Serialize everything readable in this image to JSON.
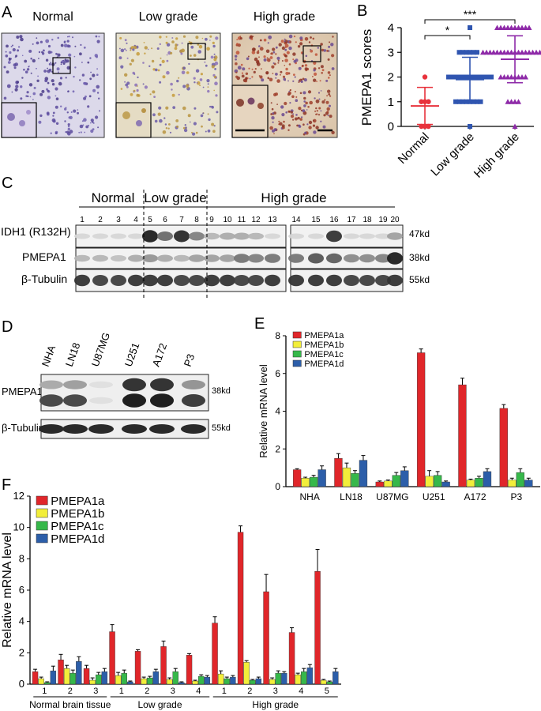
{
  "panels": {
    "A": {
      "letter": "A",
      "titles": [
        "Normal",
        "Low grade",
        "High grade"
      ]
    },
    "C": {
      "letter": "C",
      "groups": [
        "Normal",
        "Low grade",
        "High grade"
      ],
      "lanes": [
        "1",
        "2",
        "3",
        "4",
        "5",
        "6",
        "7",
        "8",
        "9",
        "10",
        "11",
        "12",
        "13",
        "14",
        "15",
        "16",
        "17",
        "18",
        "19",
        "20"
      ],
      "rows": [
        "IDH1 (R132H)",
        "PMEPA1",
        "β-Tubulin"
      ],
      "sizes": [
        "47kd",
        "38kd",
        "55kd"
      ]
    },
    "D": {
      "letter": "D",
      "cells": [
        "NHA",
        "LN18",
        "U87MG",
        "U251",
        "A172",
        "P3"
      ],
      "rows": [
        "PMEPA1",
        "β-Tubulin"
      ],
      "sizes": [
        "38kd",
        "55kd"
      ]
    }
  },
  "chart_data": [
    {
      "id": "B",
      "letter": "B",
      "type": "scatter",
      "ylabel": "PMEPA1 scores",
      "categories": [
        "Normal",
        "Low grade",
        "High grade"
      ],
      "ylim": [
        0,
        4
      ],
      "yticks": [
        "0",
        "1",
        "2",
        "3",
        "4"
      ],
      "colors": [
        "#e8323c",
        "#2f55b0",
        "#8e2aa8"
      ],
      "means": [
        0.83,
        1.9,
        2.72
      ],
      "sd": [
        0.75,
        0.9,
        0.95
      ],
      "points": [
        [
          1,
          1,
          1,
          0,
          0,
          0,
          2
        ],
        [
          0,
          1,
          1,
          1,
          1,
          1,
          1,
          1,
          1,
          2,
          2,
          2,
          2,
          2,
          2,
          2,
          2,
          2,
          2,
          2,
          2,
          2,
          3,
          3,
          3,
          3,
          3,
          3,
          4
        ],
        [
          0,
          1,
          1,
          1,
          1,
          2,
          2,
          2,
          2,
          2,
          2,
          2,
          2,
          3,
          3,
          3,
          3,
          3,
          3,
          3,
          3,
          3,
          3,
          3,
          3,
          3,
          3,
          3,
          3,
          3,
          3,
          4,
          4,
          4,
          4,
          4,
          4,
          4,
          4,
          4,
          4
        ]
      ],
      "significance": [
        {
          "from": 0,
          "to": 1,
          "label": "*"
        },
        {
          "from": 0,
          "to": 2,
          "label": "***"
        }
      ],
      "grid": false
    },
    {
      "id": "E",
      "letter": "E",
      "type": "bar",
      "ylabel": "Relative mRNA  level",
      "categories": [
        "NHA",
        "LN18",
        "U87MG",
        "U251",
        "A172",
        "P3"
      ],
      "ylim": [
        0,
        8
      ],
      "yticks": [
        "0",
        "2",
        "4",
        "6",
        "8"
      ],
      "legend_position": "top-left",
      "series": [
        {
          "name": "PMEPA1a",
          "color": "#e0262a",
          "values": [
            0.9,
            1.5,
            0.25,
            7.1,
            5.4,
            4.15
          ],
          "errors": [
            0.05,
            0.25,
            0.05,
            0.2,
            0.35,
            0.2
          ]
        },
        {
          "name": "PMEPA1b",
          "color": "#f2ee3a",
          "values": [
            0.45,
            1.0,
            0.3,
            0.55,
            0.35,
            0.35
          ],
          "errors": [
            0.05,
            0.25,
            0.05,
            0.3,
            0.05,
            0.1
          ]
        },
        {
          "name": "PMEPA1c",
          "color": "#36b84a",
          "values": [
            0.5,
            0.7,
            0.6,
            0.6,
            0.45,
            0.75
          ],
          "errors": [
            0.1,
            0.15,
            0.15,
            0.2,
            0.1,
            0.2
          ]
        },
        {
          "name": "PMEPA1d",
          "color": "#2c5ea9",
          "values": [
            0.9,
            1.4,
            0.85,
            0.25,
            0.8,
            0.35
          ],
          "errors": [
            0.2,
            0.25,
            0.2,
            0.05,
            0.15,
            0.1
          ]
        }
      ],
      "grid": false
    },
    {
      "id": "F",
      "letter": "F",
      "type": "bar",
      "ylabel": "Relative mRNA  level",
      "categories": [
        "1",
        "2",
        "3",
        "1",
        "2",
        "3",
        "4",
        "1",
        "2",
        "3",
        "4",
        "5"
      ],
      "groups": [
        {
          "label": "Normal brain tissue",
          "count": 3
        },
        {
          "label": "Low grade",
          "count": 4
        },
        {
          "label": "High grade",
          "count": 5
        }
      ],
      "ylim": [
        0,
        12
      ],
      "yticks": [
        "0",
        "2",
        "4",
        "6",
        "8",
        "10",
        "12"
      ],
      "legend_position": "top-left",
      "series": [
        {
          "name": "PMEPA1a",
          "color": "#e0262a",
          "values": [
            0.8,
            1.55,
            1.0,
            3.35,
            2.1,
            2.4,
            1.85,
            3.9,
            9.7,
            5.9,
            3.3,
            7.2
          ],
          "errors": [
            0.15,
            0.35,
            0.2,
            0.45,
            0.1,
            0.35,
            0.1,
            0.4,
            0.4,
            1.1,
            0.3,
            1.4
          ]
        },
        {
          "name": "PMEPA1b",
          "color": "#f2ee3a",
          "values": [
            0.35,
            1.0,
            0.25,
            0.55,
            0.35,
            0.3,
            0.2,
            0.65,
            1.4,
            0.3,
            0.6,
            0.25
          ],
          "errors": [
            0.1,
            0.2,
            0.15,
            0.2,
            0.1,
            0.1,
            0.05,
            0.2,
            0.1,
            0.1,
            0.1,
            0.05
          ]
        },
        {
          "name": "PMEPA1c",
          "color": "#36b84a",
          "values": [
            0.1,
            0.7,
            0.6,
            0.7,
            0.4,
            0.8,
            0.5,
            0.35,
            0.25,
            0.7,
            0.8,
            0.15
          ],
          "errors": [
            0.05,
            0.2,
            0.15,
            0.2,
            0.1,
            0.2,
            0.1,
            0.1,
            0.05,
            0.15,
            0.2,
            0.05
          ]
        },
        {
          "name": "PMEPA1d",
          "color": "#2c5ea9",
          "values": [
            0.85,
            1.45,
            0.8,
            0.15,
            0.8,
            0.1,
            0.45,
            0.45,
            0.35,
            0.7,
            1.05,
            0.8
          ],
          "errors": [
            0.3,
            0.3,
            0.2,
            0.05,
            0.15,
            0.05,
            0.1,
            0.1,
            0.1,
            0.1,
            0.2,
            0.2
          ]
        }
      ],
      "grid": false
    }
  ]
}
